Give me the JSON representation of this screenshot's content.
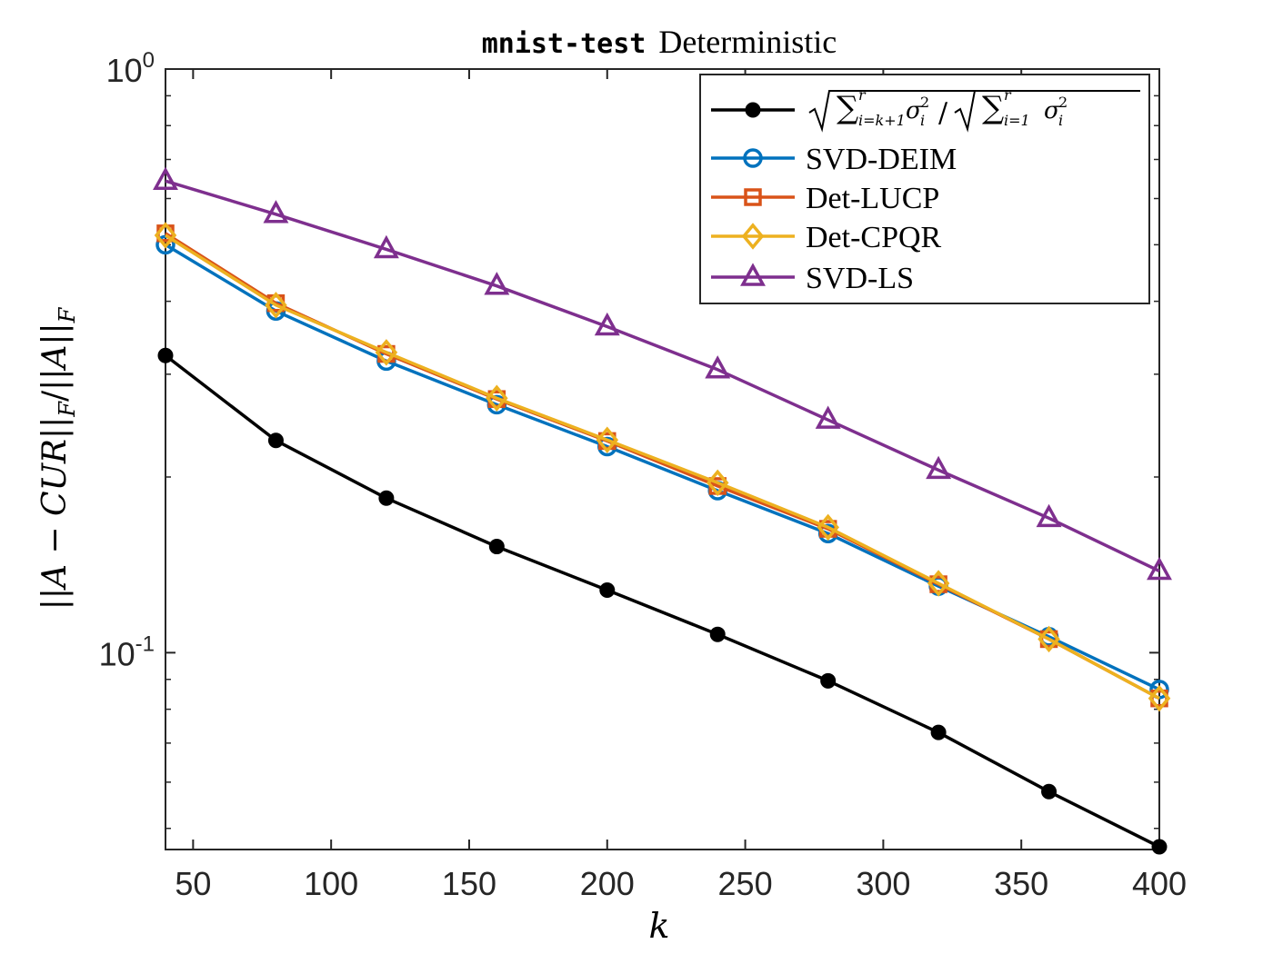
{
  "chart_data": {
    "type": "line",
    "title": {
      "code": "mnist-test",
      "text": "Deterministic"
    },
    "xlabel": "k",
    "ylabel": "||A − CUR||_F / ||A||_F",
    "yscale": "log",
    "xlim": [
      40,
      400
    ],
    "ylim": [
      0.046,
      1
    ],
    "xticks": [
      50,
      100,
      150,
      200,
      250,
      300,
      350,
      400
    ],
    "yticks": [
      {
        "value": 0.1,
        "base": "10",
        "exp": "-1"
      },
      {
        "value": 1,
        "base": "10",
        "exp": "0"
      }
    ],
    "grid": false,
    "legend_position": "top-right",
    "x": [
      40,
      80,
      120,
      160,
      200,
      240,
      280,
      320,
      360,
      400
    ],
    "series": [
      {
        "name": "√(Σ_{i=k+1}^{r} σ_i²) / √(Σ_{i=1}^{r} σ_i²)",
        "color": "#000000",
        "marker": "filled-circle",
        "values": [
          0.323,
          0.231,
          0.184,
          0.152,
          0.128,
          0.1075,
          0.0895,
          0.073,
          0.0578,
          0.0465
        ]
      },
      {
        "name": "SVD-DEIM",
        "color": "#0072BD",
        "marker": "circle",
        "values": [
          0.5,
          0.385,
          0.316,
          0.266,
          0.2255,
          0.1895,
          0.16,
          0.13,
          0.1065,
          0.0865
        ]
      },
      {
        "name": "Det-LUCP",
        "color": "#D95319",
        "marker": "square",
        "values": [
          0.523,
          0.397,
          0.325,
          0.272,
          0.2305,
          0.193,
          0.163,
          0.131,
          0.1055,
          0.0835
        ]
      },
      {
        "name": "Det-CPQR",
        "color": "#EDB120",
        "marker": "diamond",
        "values": [
          0.519,
          0.394,
          0.327,
          0.273,
          0.2315,
          0.1955,
          0.164,
          0.1315,
          0.1055,
          0.0835
        ]
      },
      {
        "name": "SVD-LS",
        "color": "#7E2F8E",
        "marker": "triangle",
        "values": [
          0.643,
          0.564,
          0.491,
          0.425,
          0.362,
          0.3055,
          0.2505,
          0.2055,
          0.17,
          0.138
        ]
      }
    ]
  }
}
